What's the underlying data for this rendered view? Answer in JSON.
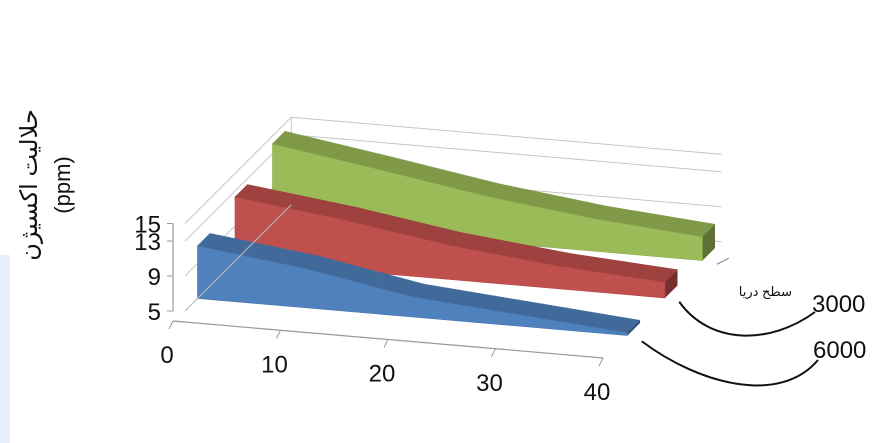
{
  "chart_data": {
    "type": "area",
    "three_d": true,
    "ylabel_line1": "حلالیت اکسیژن",
    "ylabel_line2": "(ppm)",
    "y_ticks": [
      "15",
      "13",
      "9",
      "5"
    ],
    "x_ticks": [
      "0",
      "10",
      "20",
      "30",
      "40"
    ],
    "ylim": [
      5,
      15
    ],
    "xlim": [
      0,
      40
    ],
    "x": [
      0,
      10,
      20,
      30,
      40
    ],
    "grid": true,
    "series": [
      {
        "name": "6000",
        "color": "#4f81bd",
        "values": [
          11,
          9.5,
          7.3,
          6.3,
          5.3
        ]
      },
      {
        "name": "3000",
        "color": "#c0504d",
        "values": [
          12.3,
          10.8,
          8.9,
          7.6,
          6.8
        ]
      },
      {
        "name": "سطح دریا",
        "color": "#9bbb59",
        "values": [
          14.1,
          12.2,
          10.2,
          8.7,
          7.7
        ]
      }
    ]
  }
}
